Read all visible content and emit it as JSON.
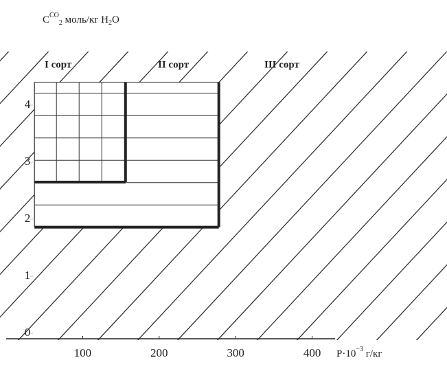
{
  "chart_data": {
    "type": "region",
    "y_label": {
      "base": "C",
      "sup": "CO",
      "sub": "2",
      "unit": " моль/кг H",
      "unit_sub": "2",
      "unit_end": "O"
    },
    "x_label": {
      "base": "P·10",
      "sup": "−3",
      "unit": " г/кг"
    },
    "xlim": [
      0,
      430
    ],
    "ylim": [
      0,
      5
    ],
    "xticks": [
      100,
      200,
      300,
      400
    ],
    "yticks": [
      0,
      1,
      2,
      3,
      4
    ],
    "regions": [
      {
        "name": "I сорт",
        "x": [
          37,
          156
        ],
        "y": [
          2.65,
          4.4
        ]
      },
      {
        "name": "II сорт",
        "x": [
          37,
          278
        ],
        "y": [
          1.86,
          4.4
        ]
      },
      {
        "name": "III сорт"
      }
    ]
  }
}
